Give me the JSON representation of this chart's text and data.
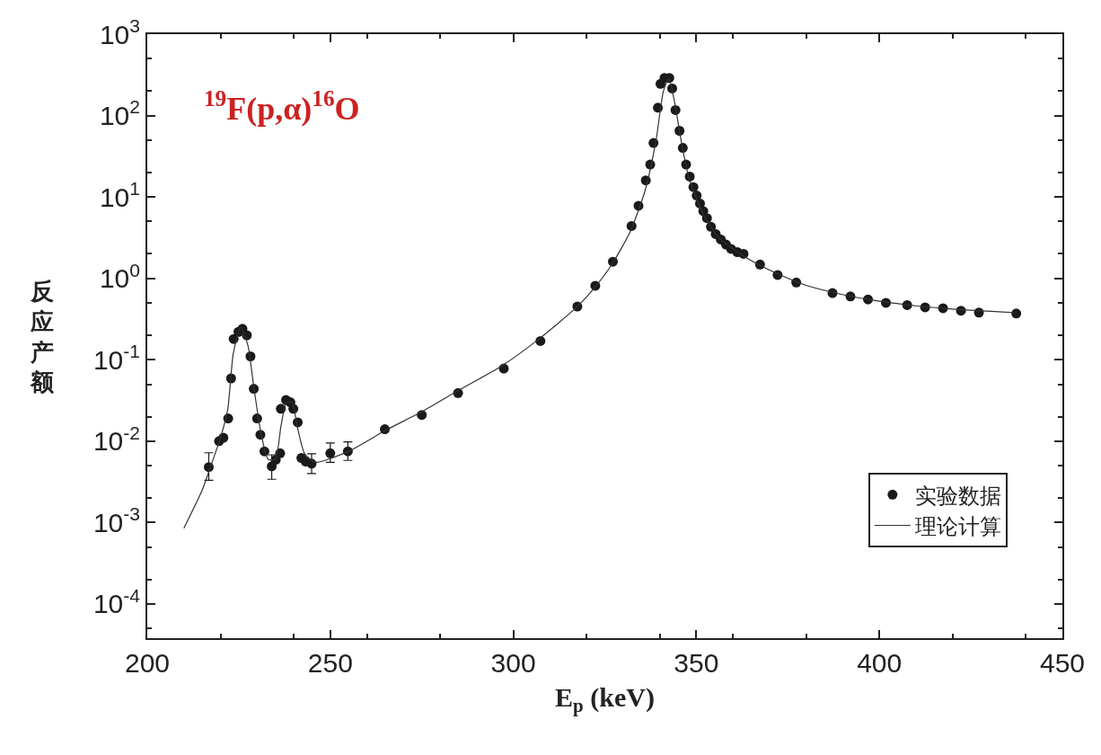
{
  "chart_data": {
    "type": "scatter",
    "xlabel": "E$_{p}$ (keV)",
    "ylabel": "反应产额",
    "annotations": [
      "$^{19}$F(p,α)$^{16}$O"
    ],
    "log": "y",
    "grid": false,
    "legend": "bottom right",
    "xlim": [
      200,
      450
    ],
    "xticks": [
      200,
      250,
      300,
      350,
      400,
      450
    ],
    "ylim": [
      3.8e-05,
      1000
    ],
    "yticks": [
      {
        "value": 0.0001,
        "label": "10$^{-4}$"
      },
      {
        "value": 0.001,
        "label": "10$^{-3}$"
      },
      {
        "value": 0.01,
        "label": "10$^{-2}$"
      },
      {
        "value": 0.1,
        "label": "10$^{-1}$"
      },
      {
        "value": 1,
        "label": "10$^{0}$"
      },
      {
        "value": 10,
        "label": "10$^{1}$"
      },
      {
        "value": 100,
        "label": "10$^{2}$"
      },
      {
        "value": 1000,
        "label": "10$^{3}$"
      }
    ],
    "series": [
      {
        "name": "实验数据",
        "marker": "circle",
        "color": "#1a1a1a",
        "x": [
          216.8,
          219.6,
          220.8,
          222.1,
          222.9,
          223.6,
          224.9,
          226.0,
          227.2,
          228.2,
          229.1,
          230.0,
          230.9,
          232.0,
          234.0,
          235.1,
          236.3,
          236.5,
          237.9,
          239.1,
          239.9,
          241.1,
          242.1,
          243.3,
          244.9,
          250.0,
          254.8,
          264.9,
          275.0,
          284.9,
          297.4,
          307.4,
          317.5,
          322.4,
          327.2,
          332.3,
          334.2,
          336.2,
          337.4,
          338.3,
          339.5,
          340.2,
          341.3,
          342.6,
          343.4,
          344.3,
          345.4,
          346.3,
          347.2,
          348.2,
          349.2,
          350.1,
          351.0,
          351.9,
          352.9,
          354.0,
          355.3,
          356.7,
          358.1,
          359.5,
          361.2,
          362.9,
          367.4,
          372.2,
          377.3,
          387.2,
          392.1,
          396.9,
          401.8,
          407.6,
          412.5,
          417.4,
          422.3,
          427.2,
          437.4
        ],
        "values": [
          0.0048,
          0.01,
          0.011,
          0.019,
          0.059,
          0.18,
          0.22,
          0.24,
          0.2,
          0.11,
          0.044,
          0.019,
          0.012,
          0.0075,
          0.0049,
          0.0059,
          0.0071,
          0.025,
          0.032,
          0.03,
          0.025,
          0.017,
          0.0062,
          0.0056,
          0.0053,
          0.0071,
          0.0075,
          0.014,
          0.021,
          0.039,
          0.078,
          0.17,
          0.45,
          0.81,
          1.6,
          4.4,
          7.8,
          16,
          25,
          46,
          125,
          245,
          290,
          290,
          215,
          117,
          65,
          40,
          25,
          17.8,
          13.2,
          10.4,
          8.3,
          6.7,
          5.5,
          4.3,
          3.5,
          3.0,
          2.6,
          2.3,
          2.1,
          2.0,
          1.48,
          1.1,
          0.89,
          0.66,
          0.6,
          0.55,
          0.5,
          0.47,
          0.44,
          0.43,
          0.4,
          0.38,
          0.37
        ],
        "errors": [
          [
            0.0033,
            0.0072
          ],
          null,
          null,
          null,
          null,
          null,
          null,
          null,
          null,
          null,
          null,
          null,
          null,
          null,
          [
            0.0034,
            0.0068
          ],
          null,
          null,
          null,
          null,
          null,
          null,
          null,
          null,
          null,
          [
            0.004,
            0.007
          ],
          [
            0.0055,
            0.0095
          ],
          [
            0.0058,
            0.0098
          ],
          null,
          null,
          null,
          null,
          null,
          null,
          null,
          null,
          null,
          null,
          null,
          null,
          null,
          null,
          null,
          null,
          null,
          null,
          null,
          null,
          null,
          null,
          null,
          null,
          null,
          null,
          null,
          null,
          null,
          null,
          null,
          null,
          null,
          null,
          null,
          null,
          null,
          null,
          null,
          null,
          null,
          null,
          null,
          null,
          null,
          null,
          null,
          null
        ]
      },
      {
        "name": "理论计算",
        "type": "line",
        "marker": "none",
        "color": "#333333",
        "x": [
          210,
          215,
          218,
          220,
          222,
          223.5,
          225.5,
          227.5,
          229,
          231,
          233,
          235,
          236.5,
          238,
          239.5,
          241,
          243,
          246,
          255,
          265,
          275,
          285,
          297,
          307,
          317,
          322,
          327,
          332,
          336,
          339,
          341,
          342.5,
          344,
          346,
          348,
          352,
          356,
          362,
          368,
          378,
          388,
          398,
          410,
          420,
          437
        ],
        "values": [
          0.00085,
          0.0025,
          0.006,
          0.011,
          0.025,
          0.12,
          0.25,
          0.15,
          0.05,
          0.013,
          0.006,
          0.006,
          0.015,
          0.03,
          0.03,
          0.015,
          0.007,
          0.0055,
          0.0075,
          0.0135,
          0.023,
          0.042,
          0.085,
          0.18,
          0.43,
          0.75,
          1.5,
          3.8,
          12,
          50,
          200,
          285,
          150,
          45,
          17,
          6,
          3.2,
          2.0,
          1.4,
          0.88,
          0.66,
          0.54,
          0.46,
          0.42,
          0.38
        ]
      }
    ]
  }
}
